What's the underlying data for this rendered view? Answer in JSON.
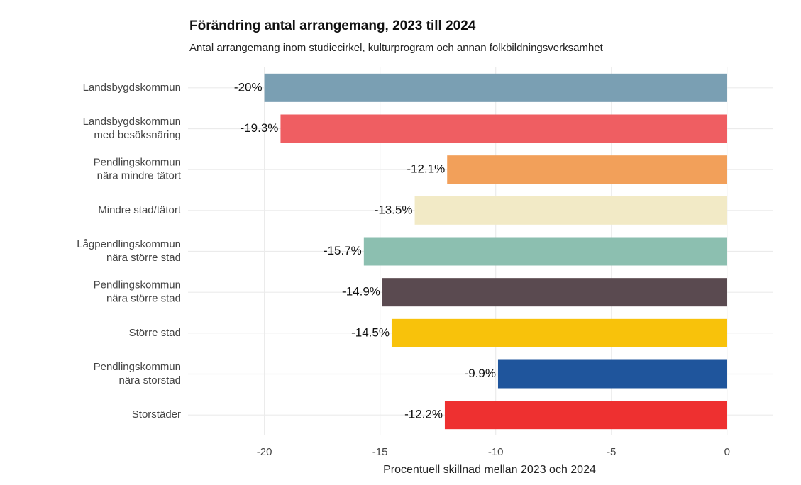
{
  "chart_data": {
    "type": "barh",
    "title": "Förändring antal arrangemang, 2023 till 2024",
    "subtitle": "Antal arrangemang inom studiecirkel, kulturprogram och annan folkbildningsverksamhet",
    "x_label": "Procentuell skillnad mellan 2023 och 2024",
    "categories": [
      "Landsbygdskommun",
      "Landsbygdskommun\nmed besöksnäring",
      "Pendlingskommun\nnära mindre tätort",
      "Mindre stad/tätort",
      "Lågpendlingskommun\nnära större stad",
      "Pendlingskommun\nnära större stad",
      "Större stad",
      "Pendlingskommun\nnära storstad",
      "Storstäder"
    ],
    "values": [
      -20,
      -19.3,
      -12.1,
      -13.5,
      -15.7,
      -14.9,
      -14.5,
      -9.9,
      -12.2
    ],
    "value_labels": [
      "-20%",
      "-19.3%",
      "-12.1%",
      "-13.5%",
      "-15.7%",
      "-14.9%",
      "-14.5%",
      "-9.9%",
      "-12.2%"
    ],
    "colors": [
      "#7a9fb3",
      "#ef5e62",
      "#f2a05a",
      "#f2eac6",
      "#8cbfb0",
      "#5a4a50",
      "#f8c20b",
      "#1f559c",
      "#ee3030"
    ],
    "xlim": [
      -23.3,
      2
    ],
    "xticks": [
      -20,
      -15,
      -10,
      -5,
      0
    ],
    "grid": true
  }
}
